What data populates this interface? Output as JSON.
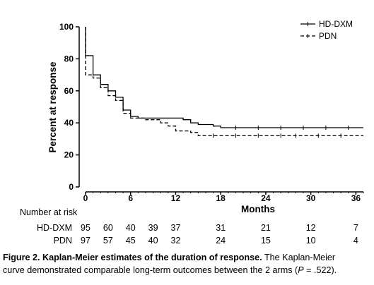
{
  "chart_data": {
    "type": "line",
    "title": "",
    "xlabel": "Months",
    "ylabel": "Percent at response",
    "xlim": [
      0,
      37
    ],
    "ylim": [
      0,
      100
    ],
    "xticks": [
      0,
      6,
      12,
      18,
      24,
      30,
      36
    ],
    "yticks": [
      0,
      20,
      40,
      60,
      80,
      100
    ],
    "grid": false,
    "legend_position": "top-right",
    "series": [
      {
        "name": "HD-DXM",
        "style": "solid",
        "points": [
          [
            0,
            100
          ],
          [
            0,
            82
          ],
          [
            1,
            82
          ],
          [
            1,
            70
          ],
          [
            2,
            70
          ],
          [
            2,
            64
          ],
          [
            3,
            64
          ],
          [
            3,
            60
          ],
          [
            4,
            60
          ],
          [
            4,
            56
          ],
          [
            5,
            56
          ],
          [
            5,
            48
          ],
          [
            6,
            48
          ],
          [
            6,
            44
          ],
          [
            7,
            44
          ],
          [
            7,
            43
          ],
          [
            13,
            43
          ],
          [
            13,
            42
          ],
          [
            14,
            42
          ],
          [
            14,
            40
          ],
          [
            15,
            40
          ],
          [
            15,
            39
          ],
          [
            17,
            39
          ],
          [
            17,
            38
          ],
          [
            18,
            38
          ],
          [
            18,
            37
          ],
          [
            37,
            37
          ]
        ],
        "censor_x": [
          20,
          23,
          26,
          29,
          32,
          35
        ]
      },
      {
        "name": "PDN",
        "style": "dashed",
        "points": [
          [
            0,
            100
          ],
          [
            0,
            70
          ],
          [
            1,
            70
          ],
          [
            1,
            68
          ],
          [
            2,
            68
          ],
          [
            2,
            62
          ],
          [
            3,
            62
          ],
          [
            3,
            57
          ],
          [
            4,
            57
          ],
          [
            4,
            54
          ],
          [
            5,
            54
          ],
          [
            5,
            46
          ],
          [
            6,
            46
          ],
          [
            6,
            43
          ],
          [
            8,
            43
          ],
          [
            8,
            42
          ],
          [
            10,
            42
          ],
          [
            10,
            40
          ],
          [
            11,
            40
          ],
          [
            11,
            38
          ],
          [
            12,
            38
          ],
          [
            12,
            35
          ],
          [
            14,
            35
          ],
          [
            14,
            34
          ],
          [
            15,
            34
          ],
          [
            15,
            32
          ],
          [
            37,
            32
          ]
        ],
        "censor_x": [
          17,
          20,
          23,
          26,
          28,
          31,
          34
        ]
      }
    ],
    "risk_table": {
      "title": "Number at risk",
      "times": [
        0,
        3,
        6,
        9,
        12,
        18,
        24,
        30,
        36
      ],
      "rows": [
        {
          "label": "HD-DXM",
          "values": [
            "95",
            "60",
            "40",
            "39",
            "37",
            "31",
            "21",
            "12",
            "7"
          ]
        },
        {
          "label": "PDN",
          "values": [
            "97",
            "57",
            "45",
            "40",
            "32",
            "24",
            "15",
            "10",
            "4"
          ]
        }
      ]
    }
  },
  "caption": {
    "bold_text": "Figure 2. Kaplan-Meier estimates of the duration of response.",
    "text_part1": " The Kaplan-Meier",
    "text_part2": "curve demonstrated comparable long-term outcomes between the 2 arms (",
    "p_label": "P",
    "text_part3": " = .522)."
  }
}
